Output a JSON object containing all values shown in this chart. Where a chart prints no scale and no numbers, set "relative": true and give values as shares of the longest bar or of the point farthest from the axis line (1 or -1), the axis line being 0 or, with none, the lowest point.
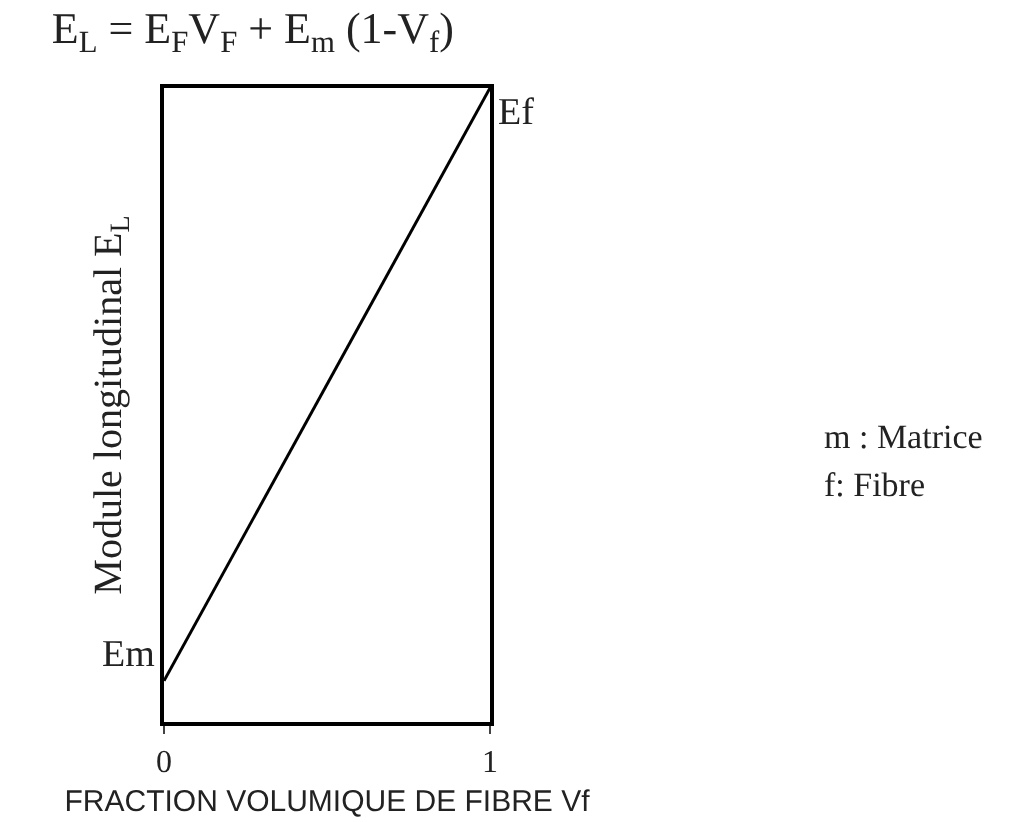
{
  "chart_data": {
    "type": "line",
    "relative": true,
    "title": "E$_{L}$ = E$_{F}$V$_{F}$ + E$_{m}$ (1-V$_{f}$)",
    "xlabel": "FRACTION VOLUMIQUE DE FIBRE Vf",
    "ylabel": "Module longitudinal E$_{L}$",
    "x": [
      0,
      1
    ],
    "xlim": [
      0,
      1
    ],
    "xticks": [
      0,
      1
    ],
    "series": [
      {
        "color": "#000000",
        "values": [
          0.065,
          1
        ]
      }
    ],
    "annotations": [
      {
        "text": "Em",
        "x": 0,
        "y": 0.065
      },
      {
        "text": "Ef",
        "x": 1,
        "y": 1
      },
      "m : Matrice",
      "f: Fibre"
    ],
    "grid": false,
    "marker": "none",
    "line_style": "solid",
    "tick_labels": "x"
  }
}
